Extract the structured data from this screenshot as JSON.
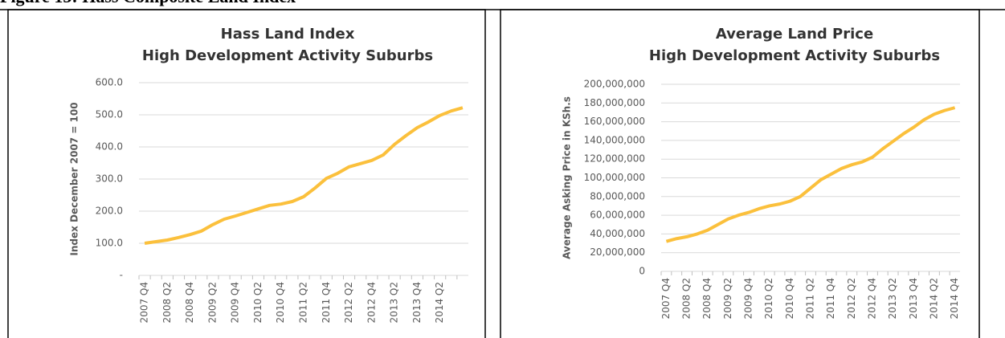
{
  "figure_title": "Figure 13: Hass Composite Land Index",
  "chart_data": [
    {
      "type": "line",
      "title": "Hass Land Index",
      "subtitle": "High Development Activity Suburbs",
      "y_label": "Index December 2007 = 100",
      "categories": [
        "2007 Q4",
        null,
        "2008 Q2",
        null,
        "2008 Q4",
        null,
        "2009 Q2",
        null,
        "2009 Q4",
        null,
        "2010 Q2",
        null,
        "2010 Q4",
        null,
        "2011 Q2",
        null,
        "2011 Q4",
        null,
        "2012 Q2",
        null,
        "2012 Q4",
        null,
        "2013 Q2",
        null,
        "2013 Q4",
        null,
        "2014 Q2",
        null,
        null
      ],
      "series": [
        {
          "name": "Hass Land Index",
          "color": "#fbc03c",
          "values": [
            100,
            105,
            110,
            118,
            127,
            138,
            158,
            175,
            185,
            196,
            207,
            218,
            222,
            230,
            245,
            272,
            302,
            318,
            338,
            348,
            358,
            375,
            408,
            435,
            460,
            478,
            498,
            512,
            522
          ]
        }
      ],
      "ylim": [
        0,
        600
      ],
      "yticks": [
        {
          "value": 0,
          "label": "-"
        },
        {
          "value": 100,
          "label": "100.0"
        },
        {
          "value": 200,
          "label": "200.0"
        },
        {
          "value": 300,
          "label": "300.0"
        },
        {
          "value": 400,
          "label": "400.0"
        },
        {
          "value": 500,
          "label": "500.0"
        },
        {
          "value": 600,
          "label": "600.0"
        }
      ],
      "grid": true
    },
    {
      "type": "line",
      "title": "Average Land Price",
      "subtitle": "High Development Activity Suburbs",
      "y_label": "Average Asking Price in KSh.s",
      "categories": [
        "2007 Q4",
        null,
        "2008 Q2",
        null,
        "2008 Q4",
        null,
        "2009 Q2",
        null,
        "2009 Q4",
        null,
        "2010 Q2",
        null,
        "2010 Q4",
        null,
        "2011 Q2",
        null,
        "2011 Q4",
        null,
        "2012 Q2",
        null,
        "2012 Q4",
        null,
        "2013 Q2",
        null,
        "2013 Q4",
        null,
        "2014 Q2",
        null,
        "2014 Q4"
      ],
      "series": [
        {
          "name": "Average Land Price",
          "color": "#fbc03c",
          "values": [
            32000000,
            35000000,
            37000000,
            40000000,
            44000000,
            50000000,
            56000000,
            60000000,
            63000000,
            67000000,
            70000000,
            72000000,
            75000000,
            80000000,
            89000000,
            98000000,
            104000000,
            110000000,
            114000000,
            117000000,
            122000000,
            131000000,
            139000000,
            147000000,
            154000000,
            162000000,
            168000000,
            172000000,
            175000000
          ]
        }
      ],
      "ylim": [
        0,
        200000000
      ],
      "yticks": [
        0,
        {
          "value": 20000000,
          "label": "20,000,000"
        },
        {
          "value": 40000000,
          "label": "40,000,000"
        },
        {
          "value": 60000000,
          "label": "60,000,000"
        },
        {
          "value": 80000000,
          "label": "80,000,000"
        },
        {
          "value": 100000000,
          "label": "100,000,000"
        },
        {
          "value": 120000000,
          "label": "120,000,000"
        },
        {
          "value": 140000000,
          "label": "140,000,000"
        },
        {
          "value": 160000000,
          "label": "160,000,000"
        },
        {
          "value": 180000000,
          "label": "180,000,000"
        },
        {
          "value": 200000000,
          "label": "200,000,000"
        }
      ],
      "grid": true
    }
  ]
}
